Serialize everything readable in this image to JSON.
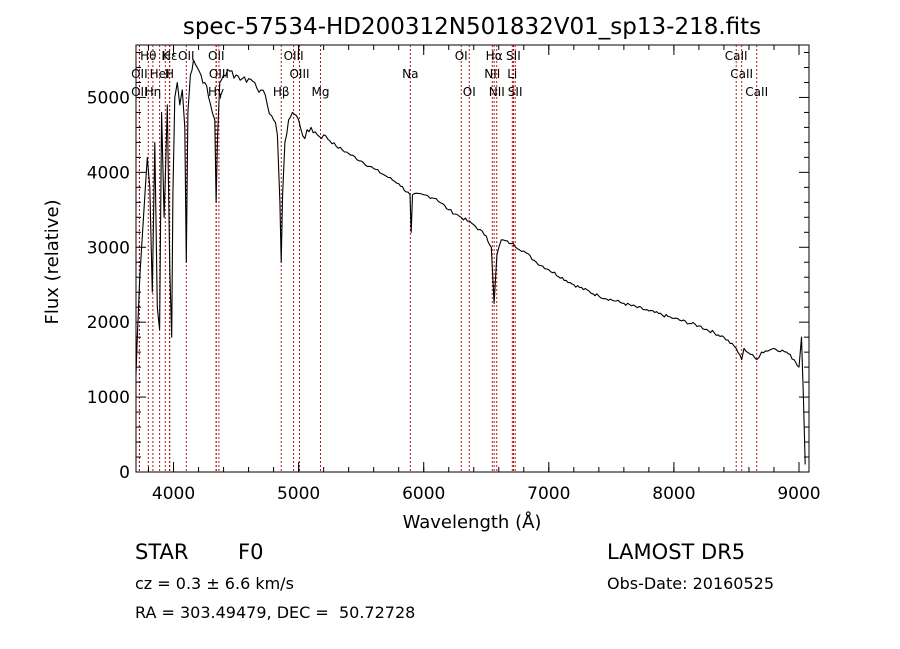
{
  "info": {
    "object_type": "STAR",
    "subclass": "F0",
    "survey": "LAMOST DR5",
    "redshift": "cz = 0.3 ± 6.6 km/s",
    "obs_date": "Obs-Date: 20160525",
    "coords": "RA = 303.49479, DEC =  50.72728"
  },
  "chart_data": {
    "type": "line",
    "title": "spec-57534-HD200312N501832V01_sp13-218.fits",
    "xlabel": "Wavelength (Å)",
    "ylabel": "Flux (relative)",
    "xlim": [
      3700,
      9080
    ],
    "ylim": [
      0,
      5700
    ],
    "xticks": [
      4000,
      5000,
      6000,
      7000,
      8000,
      9000
    ],
    "yticks": [
      0,
      1000,
      2000,
      3000,
      4000,
      5000
    ],
    "grid": false,
    "line_color": "#000000",
    "marker_color": "#aa0000",
    "series": [
      {
        "x": [
          3700,
          3710,
          3730,
          3760,
          3790,
          3810,
          3830,
          3850,
          3870,
          3889,
          3905,
          3925,
          3950,
          3970,
          3985,
          3995,
          4010,
          4030,
          4050,
          4070,
          4090,
          4102,
          4115,
          4135,
          4160,
          4190,
          4220,
          4250,
          4280,
          4310,
          4330,
          4340,
          4352,
          4370,
          4400,
          4450,
          4500,
          4550,
          4600,
          4650,
          4700,
          4750,
          4800,
          4830,
          4850,
          4861,
          4872,
          4890,
          4920,
          4950,
          5000,
          5050,
          5100,
          5150,
          5200,
          5300,
          5400,
          5500,
          5600,
          5700,
          5800,
          5890,
          5900,
          5910,
          6000,
          6100,
          6200,
          6300,
          6400,
          6500,
          6540,
          6563,
          6585,
          6620,
          6700,
          6800,
          6900,
          7000,
          7200,
          7400,
          7600,
          7800,
          8000,
          8200,
          8400,
          8498,
          8542,
          8560,
          8662,
          8700,
          8800,
          8900,
          8960,
          9000,
          9020,
          9035,
          9050
        ],
        "y": [
          1300,
          1800,
          2600,
          3400,
          4200,
          3800,
          2400,
          4400,
          2200,
          1900,
          4800,
          3400,
          4900,
          2700,
          1800,
          3700,
          5000,
          5200,
          4900,
          5100,
          4600,
          2800,
          4800,
          5300,
          5500,
          5400,
          5300,
          5200,
          5000,
          4800,
          4700,
          3600,
          4500,
          5200,
          5300,
          5350,
          5300,
          5250,
          5250,
          5200,
          5100,
          4900,
          4700,
          4500,
          3600,
          2800,
          3700,
          4400,
          4700,
          4800,
          4700,
          4450,
          4600,
          4500,
          4500,
          4350,
          4250,
          4150,
          4050,
          3950,
          3850,
          3700,
          3200,
          3700,
          3700,
          3650,
          3500,
          3400,
          3300,
          3150,
          3000,
          2250,
          2900,
          3100,
          3050,
          2950,
          2800,
          2700,
          2500,
          2350,
          2250,
          2150,
          2050,
          1950,
          1800,
          1650,
          1500,
          1650,
          1500,
          1600,
          1650,
          1600,
          1500,
          1400,
          1800,
          1000,
          100
        ]
      }
    ],
    "lines": [
      {
        "name": "Hθ",
        "x": 3798,
        "row": 0
      },
      {
        "name": "K",
        "x": 3934,
        "row": 0
      },
      {
        "name": "Hε",
        "x": 3970,
        "row": 0
      },
      {
        "name": "OII",
        "x": 4102,
        "row": 0
      },
      {
        "name": "OII",
        "x": 4342,
        "row": 0
      },
      {
        "name": "OIII",
        "x": 4960,
        "row": 0
      },
      {
        "name": "OI",
        "x": 6300,
        "row": 0
      },
      {
        "name": "Hα",
        "x": 6563,
        "row": 0
      },
      {
        "name": "SII",
        "x": 6717,
        "row": 0
      },
      {
        "name": "CaII",
        "x": 8498,
        "row": 0
      },
      {
        "name": "OII",
        "x": 3727,
        "row": 1
      },
      {
        "name": "HeI",
        "x": 3889,
        "row": 1
      },
      {
        "name": "H",
        "x": 3968,
        "row": 1
      },
      {
        "name": "OIII",
        "x": 4363,
        "row": 1
      },
      {
        "name": "OIII",
        "x": 5007,
        "row": 1
      },
      {
        "name": "Na",
        "x": 5893,
        "row": 1
      },
      {
        "name": "NII",
        "x": 6548,
        "row": 1
      },
      {
        "name": "Li",
        "x": 6708,
        "row": 1
      },
      {
        "name": "CaII",
        "x": 8542,
        "row": 1
      },
      {
        "name": "OII",
        "x": 3727,
        "row": 2
      },
      {
        "name": "Hη",
        "x": 3835,
        "row": 2
      },
      {
        "name": "Hγ",
        "x": 4340,
        "row": 2
      },
      {
        "name": "Hβ",
        "x": 4861,
        "row": 2
      },
      {
        "name": "Mg",
        "x": 5175,
        "row": 2
      },
      {
        "name": "OI",
        "x": 6364,
        "row": 2
      },
      {
        "name": "NII",
        "x": 6584,
        "row": 2
      },
      {
        "name": "SII",
        "x": 6731,
        "row": 2
      },
      {
        "name": "CaII",
        "x": 8662,
        "row": 2
      }
    ]
  }
}
